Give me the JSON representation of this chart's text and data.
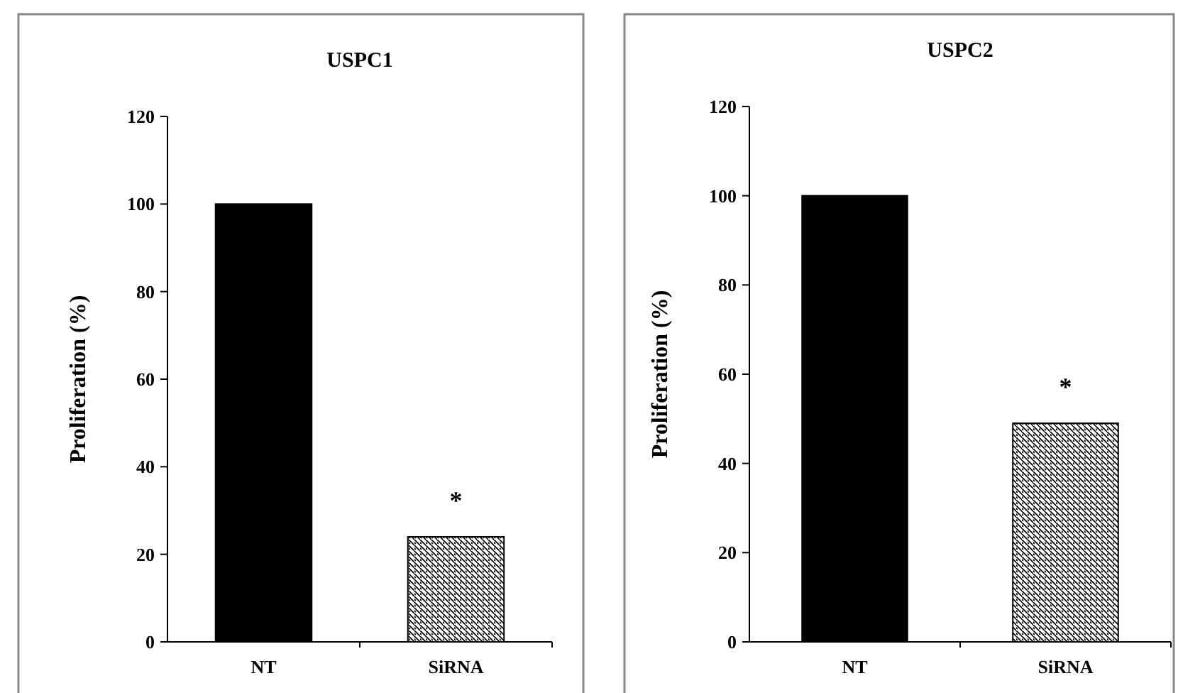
{
  "chart_data": [
    {
      "type": "bar",
      "title": "USPC1",
      "ylabel": "Proliferation (%)",
      "categories": [
        "NT",
        "SiRNA"
      ],
      "values": [
        100,
        24
      ],
      "colors": [
        "#000000",
        "#000000"
      ],
      "ylim": [
        0,
        120
      ],
      "yticks": [
        0,
        20,
        40,
        60,
        80,
        100,
        120
      ],
      "annotations": [
        "*"
      ]
    },
    {
      "type": "bar",
      "title": "USPC2",
      "ylabel": "Proliferation (%)",
      "categories": [
        "NT",
        "SiRNA"
      ],
      "values": [
        100,
        49
      ],
      "colors": [
        "#000000",
        "#000000"
      ],
      "ylim": [
        0,
        120
      ],
      "yticks": [
        0,
        20,
        40,
        60,
        80,
        100,
        120
      ],
      "annotations": [
        "*"
      ]
    }
  ]
}
